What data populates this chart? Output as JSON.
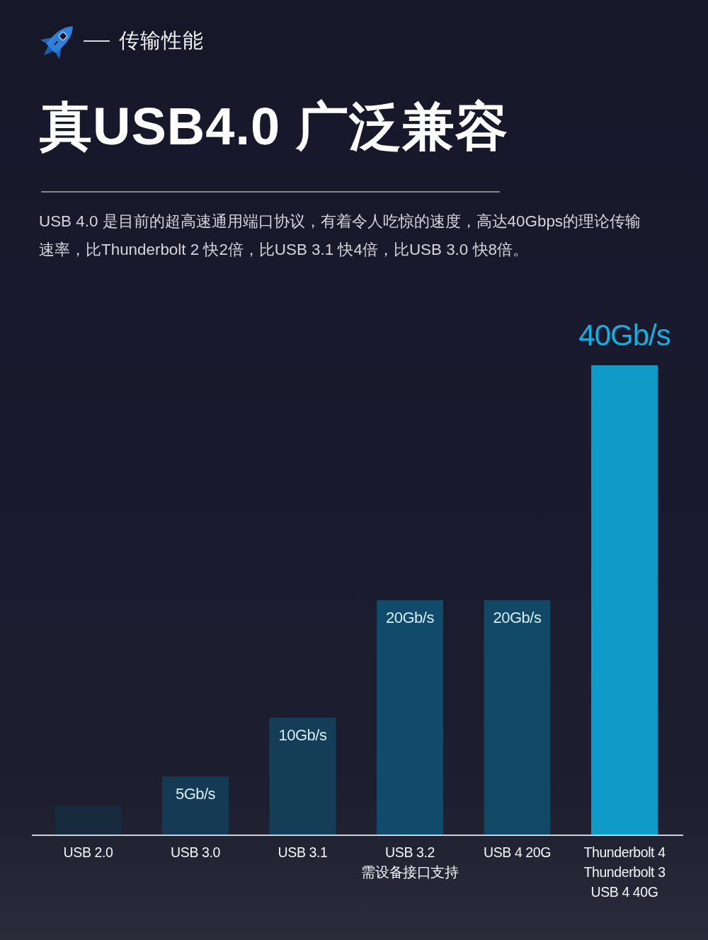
{
  "chart_data": {
    "type": "bar",
    "title": "真USB4.0 广泛兼容",
    "subtitle": "USB 4.0 是目前的超高速通用端口协议，有着令人吃惊的速度，高达40Gbps的理论传输速率，比Thunderbolt 2 快2倍，比USB 3.1 快4倍，比USB 3.0 快8倍。",
    "annotations": [
      "传输性能"
    ],
    "categories": [
      "USB 2.0",
      "USB 3.0",
      "USB 3.1",
      "USB 3.2\n需设备接口支持",
      "USB 4 20G",
      "Thunderbolt 4\nThunderbolt 3\nUSB 4 40G"
    ],
    "values": [
      2.5,
      5,
      10,
      20,
      20,
      40
    ],
    "colors": [
      "#172b3e",
      "#153b54",
      "#143d57",
      "#114b6b",
      "#104865",
      "#0e9bc7"
    ],
    "value_labels": [
      null,
      "5Gb/s",
      "10Gb/s",
      "20Gb/s",
      "20Gb/s",
      "40Gb/s"
    ]
  }
}
